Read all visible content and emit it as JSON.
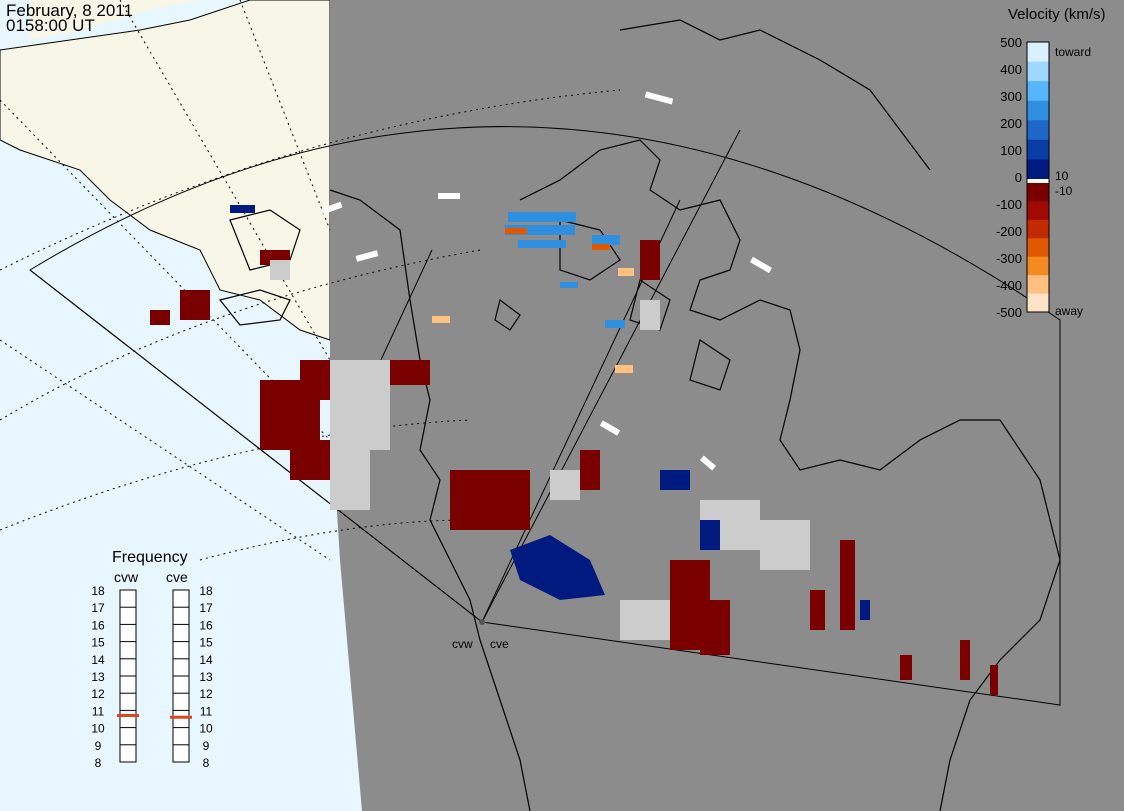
{
  "header": {
    "date": "February, 8 2011",
    "time": "0158:00 UT"
  },
  "colorbar": {
    "title": "Velocity (km/s)",
    "ticks": [
      "500",
      "400",
      "300",
      "200",
      "100",
      "0",
      "-100",
      "-200",
      "-300",
      "-400",
      "-500"
    ],
    "inner_labels": [
      "10",
      "-10"
    ],
    "toward_label": "toward",
    "away_label": "away",
    "colors": [
      "#d8f0ff",
      "#9fd7ff",
      "#55b6ff",
      "#2e8ee0",
      "#1e66c8",
      "#0a3ca8",
      "#001a80",
      "#ffffff",
      "#7a0000",
      "#a00a00",
      "#c42a00",
      "#e05800",
      "#f58b20",
      "#ffc080",
      "#fde2c6"
    ]
  },
  "frequency_panel": {
    "title": "Frequency",
    "radars": [
      {
        "name": "cvw",
        "frequency_mhz": 10.7
      },
      {
        "name": "cve",
        "frequency_mhz": 10.6
      }
    ],
    "scale": [
      "18",
      "17",
      "16",
      "15",
      "14",
      "13",
      "12",
      "11",
      "10",
      "9",
      "8"
    ],
    "marker_color": "#e0441a"
  },
  "map": {
    "radar_labels": [
      "cvw",
      "cve"
    ],
    "land_color": "#f8f6e6",
    "ocean_color": "#e8f6ff",
    "night_color": "#8c8c8c"
  }
}
